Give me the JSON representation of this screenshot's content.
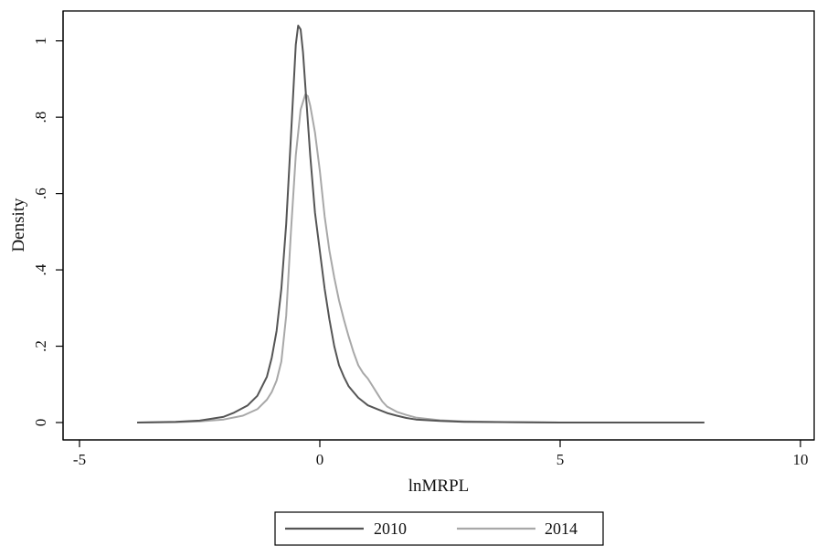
{
  "chart_data": {
    "type": "line",
    "xlabel": "lnMRPL",
    "ylabel": "Density",
    "xlim": [
      -5,
      10
    ],
    "ylim": [
      0,
      1.04
    ],
    "xticks": [
      -5,
      0,
      5,
      10
    ],
    "xtick_labels": [
      "-5",
      "0",
      "5",
      "10"
    ],
    "yticks": [
      0,
      0.2,
      0.4,
      0.6,
      0.8,
      1
    ],
    "ytick_labels": [
      "0",
      ".2",
      ".4",
      ".6",
      ".8",
      "1"
    ],
    "grid": false,
    "legend": {
      "position": "bottom",
      "entries": [
        "2010",
        "2014"
      ]
    },
    "series": [
      {
        "name": "2010",
        "color": "#555555",
        "x": [
          -3.8,
          -3.0,
          -2.5,
          -2.0,
          -1.8,
          -1.5,
          -1.3,
          -1.1,
          -1.0,
          -0.9,
          -0.8,
          -0.7,
          -0.6,
          -0.5,
          -0.45,
          -0.4,
          -0.35,
          -0.3,
          -0.2,
          -0.1,
          0.0,
          0.1,
          0.2,
          0.3,
          0.4,
          0.5,
          0.6,
          0.7,
          0.8,
          0.9,
          1.0,
          1.2,
          1.4,
          1.6,
          1.8,
          2.0,
          2.5,
          3.0,
          4.0,
          5.0,
          6.0,
          7.0,
          8.0
        ],
        "y": [
          0.0,
          0.002,
          0.005,
          0.015,
          0.025,
          0.045,
          0.07,
          0.12,
          0.17,
          0.24,
          0.35,
          0.52,
          0.75,
          0.99,
          1.04,
          1.03,
          0.97,
          0.88,
          0.7,
          0.55,
          0.45,
          0.35,
          0.27,
          0.2,
          0.15,
          0.12,
          0.095,
          0.08,
          0.065,
          0.055,
          0.045,
          0.035,
          0.025,
          0.018,
          0.012,
          0.008,
          0.004,
          0.002,
          0.001,
          0.0,
          0.0,
          0.0,
          0.0
        ]
      },
      {
        "name": "2014",
        "color": "#a8a8a8",
        "x": [
          -3.8,
          -3.0,
          -2.5,
          -2.0,
          -1.6,
          -1.3,
          -1.1,
          -1.0,
          -0.9,
          -0.8,
          -0.7,
          -0.6,
          -0.5,
          -0.4,
          -0.3,
          -0.25,
          -0.2,
          -0.1,
          0.0,
          0.1,
          0.2,
          0.3,
          0.4,
          0.5,
          0.6,
          0.7,
          0.8,
          0.9,
          1.0,
          1.1,
          1.2,
          1.3,
          1.4,
          1.6,
          1.8,
          2.0,
          2.5,
          3.0,
          4.0,
          5.0,
          6.0,
          7.0,
          8.0
        ],
        "y": [
          0.0,
          0.001,
          0.003,
          0.008,
          0.018,
          0.035,
          0.06,
          0.08,
          0.11,
          0.16,
          0.28,
          0.5,
          0.7,
          0.82,
          0.86,
          0.855,
          0.83,
          0.76,
          0.66,
          0.54,
          0.45,
          0.38,
          0.32,
          0.27,
          0.225,
          0.185,
          0.15,
          0.13,
          0.115,
          0.095,
          0.075,
          0.055,
          0.042,
          0.028,
          0.02,
          0.013,
          0.006,
          0.003,
          0.001,
          0.0,
          0.0,
          0.0,
          0.0
        ]
      }
    ]
  }
}
